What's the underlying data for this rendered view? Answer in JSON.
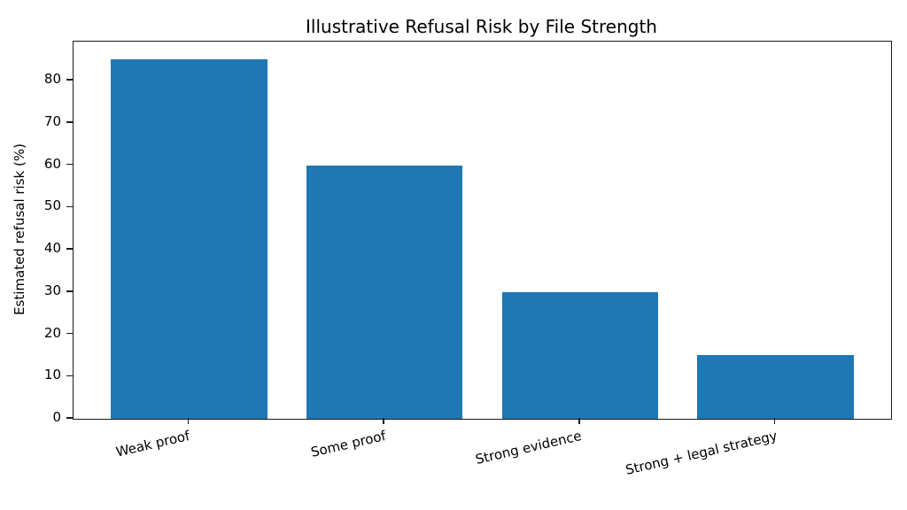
{
  "chart_data": {
    "type": "bar",
    "title": "Illustrative Refusal Risk by File Strength",
    "categories": [
      "Weak proof",
      "Some proof",
      "Strong evidence",
      "Strong + legal strategy"
    ],
    "values": [
      85,
      60,
      30,
      15
    ],
    "xlabel": "",
    "ylabel": "Estimated refusal risk (%)",
    "ylim": [
      0,
      89.25
    ],
    "yticks": [
      0,
      10,
      20,
      30,
      40,
      50,
      60,
      70,
      80
    ],
    "bar_color": "#1f77b4",
    "bar_width_fraction": 0.8,
    "xlim": [
      -0.59,
      3.59
    ],
    "tick_label_rotation_deg": 13,
    "grid": false,
    "legend_position": "none",
    "background_color": "#ffffff",
    "spine_color": "#1a1a1a"
  }
}
